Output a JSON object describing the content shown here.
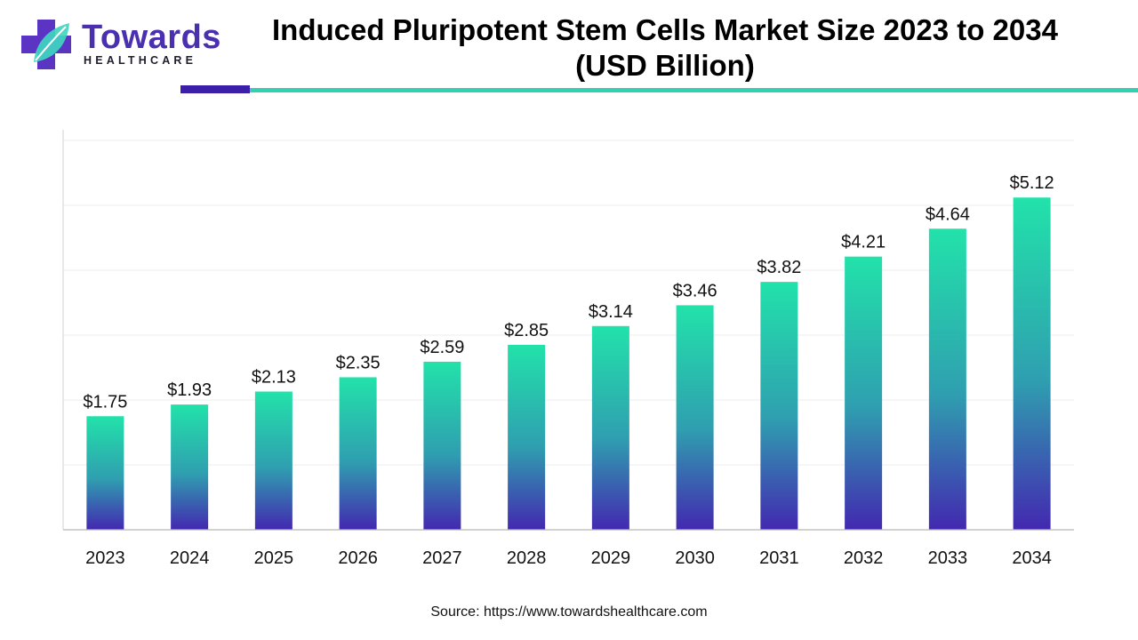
{
  "brand": {
    "name": "Towards",
    "tagline": "HEALTHCARE",
    "colors": {
      "primary": "#4a2fb0",
      "accent": "#33d1b0"
    }
  },
  "title": "Induced Pluripotent Stem Cells Market Size 2023 to 2034 (USD Billion)",
  "source": "Source: https://www.towardshealthcare.com",
  "chart_data": {
    "type": "bar",
    "title": "Induced Pluripotent Stem Cells Market Size 2023 to 2034 (USD Billion)",
    "xlabel": "",
    "ylabel": "",
    "categories": [
      "2023",
      "2024",
      "2025",
      "2026",
      "2027",
      "2028",
      "2029",
      "2030",
      "2031",
      "2032",
      "2033",
      "2034"
    ],
    "values": [
      1.75,
      1.93,
      2.13,
      2.35,
      2.59,
      2.85,
      3.14,
      3.46,
      3.82,
      4.21,
      4.64,
      5.12
    ],
    "labels": [
      "$1.75",
      "$1.93",
      "$2.13",
      "$2.35",
      "$2.59",
      "$2.85",
      "$3.14",
      "$3.46",
      "$3.82",
      "$4.21",
      "$4.64",
      "$5.12"
    ],
    "ylim": [
      0,
      6
    ],
    "grid": true,
    "bar_gradient": {
      "top": "#22e2aa",
      "middle": "#2f9fb0",
      "bottom": "#4328b0"
    }
  }
}
